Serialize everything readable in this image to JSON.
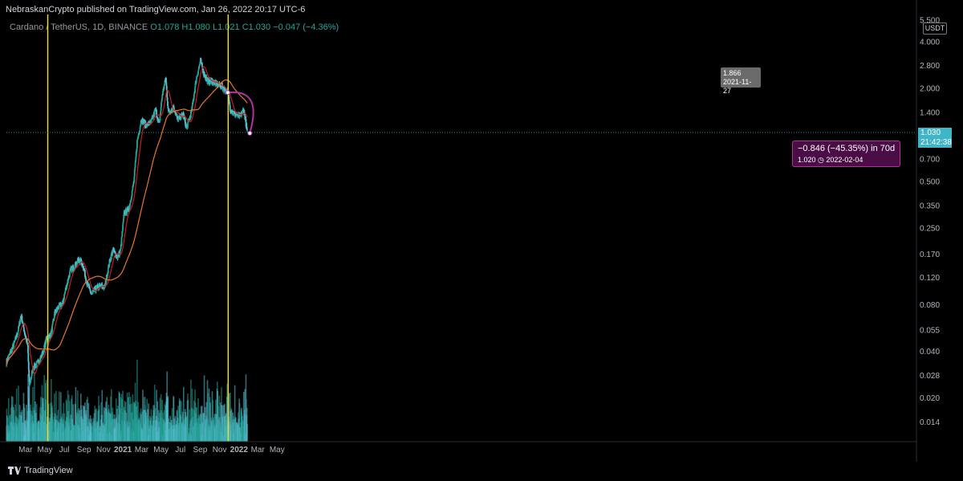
{
  "header": {
    "published": "NebraskanCrypto published on TradingView.com, Jan 26, 2022 20:17 UTC-6"
  },
  "legend": {
    "symbol": "Cardano / TetherUS, 1D, BINANCE",
    "open": "O1.078",
    "high": "H1.080",
    "low": "L1.021",
    "close": "C1.030",
    "change": "−0.047 (−4.36%)"
  },
  "axis": {
    "currency": "USDT",
    "price_labels": [
      "5.500",
      "4.000",
      "2.800",
      "2.000",
      "1.400",
      "1.030",
      "0.700",
      "0.500",
      "0.350",
      "0.250",
      "0.170",
      "0.120",
      "0.080",
      "0.055",
      "0.040",
      "0.028",
      "0.020",
      "0.014"
    ],
    "current_price": "1.030",
    "countdown": "21:42:38"
  },
  "tooltip": {
    "price": "1.866",
    "date": "2021-11-27"
  },
  "measure": {
    "line1": "−0.846 (−45.35%) in 70d",
    "line2": "1.020 ◷ 2022-02-04"
  },
  "footer": {
    "brand": "TradingView"
  },
  "colors": {
    "up": "#26a69a",
    "down": "#5bc3d6",
    "ma_fast": "#c81d1d",
    "ma_slow": "#e8772b",
    "vline": "#f6e31a",
    "measure_bg": "#4a0d45",
    "measure_border": "#b0329f"
  },
  "chart_data": {
    "type": "line",
    "title": "Cardano / TetherUS, 1D, BINANCE",
    "y_scale": "log",
    "x_ticks": [
      "Mar",
      "May",
      "Jul",
      "Sep",
      "Nov",
      "2021",
      "Mar",
      "May",
      "Jul",
      "Sep",
      "Nov",
      "2022",
      "Mar",
      "May"
    ],
    "y_ticks": [
      5.5,
      4.0,
      2.8,
      2.0,
      1.4,
      1.03,
      0.7,
      0.5,
      0.35,
      0.25,
      0.17,
      0.12,
      0.08,
      0.055,
      0.04,
      0.028,
      0.02,
      0.014
    ],
    "series": [
      {
        "name": "",
        "values": [
          [
            "2020-01-01",
            0.034
          ],
          [
            "2020-01-20",
            0.042
          ],
          [
            "2020-02-05",
            0.052
          ],
          [
            "2020-02-16",
            0.068
          ],
          [
            "2020-02-28",
            0.052
          ],
          [
            "2020-03-08",
            0.043
          ],
          [
            "2020-03-13",
            0.024
          ],
          [
            "2020-03-25",
            0.031
          ],
          [
            "2020-04-10",
            0.034
          ],
          [
            "2020-04-25",
            0.039
          ],
          [
            "2020-05-06",
            0.048
          ],
          [
            "2020-05-20",
            0.051
          ],
          [
            "2020-06-01",
            0.07
          ],
          [
            "2020-06-15",
            0.078
          ],
          [
            "2020-06-25",
            0.08
          ],
          [
            "2020-07-05",
            0.1
          ],
          [
            "2020-07-20",
            0.132
          ],
          [
            "2020-08-01",
            0.14
          ],
          [
            "2020-08-15",
            0.155
          ],
          [
            "2020-08-28",
            0.145
          ],
          [
            "2020-09-10",
            0.11
          ],
          [
            "2020-09-25",
            0.093
          ],
          [
            "2020-10-10",
            0.102
          ],
          [
            "2020-10-25",
            0.105
          ],
          [
            "2020-11-05",
            0.103
          ],
          [
            "2020-11-20",
            0.15
          ],
          [
            "2020-12-01",
            0.18
          ],
          [
            "2020-12-15",
            0.16
          ],
          [
            "2020-12-25",
            0.18
          ],
          [
            "2021-01-05",
            0.31
          ],
          [
            "2021-01-20",
            0.33
          ],
          [
            "2021-02-05",
            0.5
          ],
          [
            "2021-02-15",
            0.9
          ],
          [
            "2021-02-28",
            1.25
          ],
          [
            "2021-03-15",
            1.15
          ],
          [
            "2021-03-31",
            1.2
          ],
          [
            "2021-04-14",
            1.45
          ],
          [
            "2021-04-25",
            1.15
          ],
          [
            "2021-05-05",
            1.8
          ],
          [
            "2021-05-16",
            2.3
          ],
          [
            "2021-05-24",
            1.4
          ],
          [
            "2021-06-10",
            1.5
          ],
          [
            "2021-06-22",
            1.25
          ],
          [
            "2021-07-10",
            1.35
          ],
          [
            "2021-07-20",
            1.1
          ],
          [
            "2021-08-05",
            1.4
          ],
          [
            "2021-08-20",
            2.3
          ],
          [
            "2021-09-02",
            3.0
          ],
          [
            "2021-09-12",
            2.5
          ],
          [
            "2021-09-25",
            2.2
          ],
          [
            "2021-10-10",
            2.2
          ],
          [
            "2021-10-25",
            2.1
          ],
          [
            "2021-11-08",
            2.05
          ],
          [
            "2021-11-27",
            1.866
          ],
          [
            "2021-12-05",
            1.45
          ],
          [
            "2021-12-20",
            1.35
          ],
          [
            "2022-01-05",
            1.3
          ],
          [
            "2022-01-15",
            1.45
          ],
          [
            "2022-01-20",
            1.3
          ],
          [
            "2022-01-27",
            1.03
          ]
        ]
      }
    ],
    "moving_averages": [
      {
        "name": "",
        "color": "#c81d1d"
      },
      {
        "name": "",
        "color": "#e8772b"
      }
    ],
    "vertical_lines": [
      "2020-05-10",
      "2021-11-28"
    ],
    "last_price": 1.03,
    "measurement": {
      "from_date": "2021-11-27",
      "from_price": 1.866,
      "to_date": "2022-02-04",
      "to_price": 1.02,
      "change": -0.846,
      "change_pct": -45.35,
      "days": 70
    }
  }
}
